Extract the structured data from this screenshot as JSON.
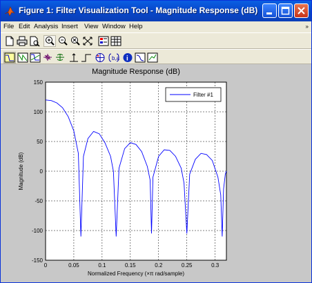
{
  "window": {
    "title": "Figure 1: Filter Visualization Tool - Magnitude Response (dB)"
  },
  "menu": {
    "items": [
      "File",
      "Edit",
      "Analysis",
      "Insert",
      "View",
      "Window",
      "Help"
    ],
    "overflow_glyph": "»"
  },
  "toolbar1": {
    "icons": [
      "new-icon",
      "print-icon",
      "print-preview-icon",
      "zoom-in-icon",
      "zoom-out-icon",
      "zoom-x-icon",
      "zoom-fit-icon",
      "legend-icon",
      "grid-icon"
    ]
  },
  "toolbar2": {
    "icons": [
      "magnitude-response-icon",
      "phase-response-icon",
      "magnitude-phase-icon",
      "group-delay-icon",
      "phase-delay-icon",
      "impulse-response-icon",
      "step-response-icon",
      "pole-zero-icon",
      "coefficients-icon",
      "filter-info-icon",
      "data-icon",
      "legend-toggle-icon"
    ]
  },
  "chart_data": {
    "type": "line",
    "title": "Magnitude Response (dB)",
    "xlabel": "Normalized Frequency (×π rad/sample)",
    "ylabel": "Magnitude (dB)",
    "xlim": [
      0,
      0.32
    ],
    "ylim": [
      -150,
      150
    ],
    "xticks": [
      "0",
      "0.05",
      "0.1",
      "0.15",
      "0.2",
      "0.25",
      "0.3"
    ],
    "yticks": [
      "150",
      "100",
      "50",
      "0",
      "-50",
      "-100",
      "-150"
    ],
    "grid": true,
    "legend": "top-right",
    "series": [
      {
        "name": "Filter #1",
        "color": "#0000ff",
        "x": [
          0,
          0.01,
          0.02,
          0.03,
          0.04,
          0.05,
          0.058,
          0.0625,
          0.067,
          0.075,
          0.085,
          0.095,
          0.105,
          0.115,
          0.12,
          0.125,
          0.13,
          0.14,
          0.15,
          0.16,
          0.17,
          0.18,
          0.185,
          0.1875,
          0.19,
          0.2,
          0.21,
          0.22,
          0.23,
          0.24,
          0.245,
          0.25,
          0.255,
          0.265,
          0.275,
          0.285,
          0.295,
          0.305,
          0.31,
          0.3125,
          0.315,
          0.318,
          0.32
        ],
        "y": [
          120,
          119,
          115,
          107,
          92,
          68,
          30,
          -110,
          25,
          55,
          67,
          63,
          48,
          25,
          0,
          -110,
          5,
          38,
          48,
          45,
          33,
          8,
          -15,
          -105,
          -10,
          25,
          36,
          35,
          25,
          5,
          -20,
          -105,
          -5,
          20,
          30,
          28,
          18,
          -10,
          -40,
          -110,
          -30,
          -5,
          0
        ]
      }
    ]
  }
}
